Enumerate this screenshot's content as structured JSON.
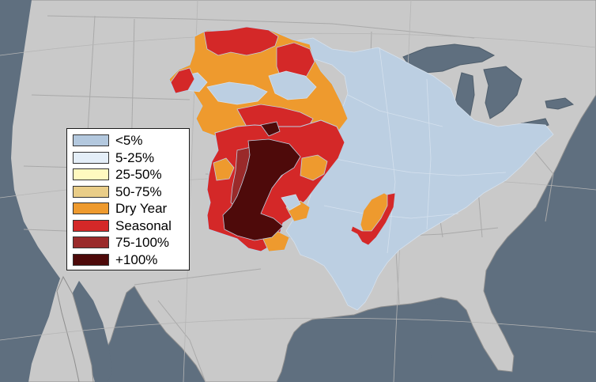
{
  "map": {
    "colors": {
      "ocean": "#5f6f7f",
      "land": "#c9c9c9",
      "border": "#a9a9a9",
      "lake": "#5f6f7f",
      "basin_fill": "#bccfe2",
      "basin_outline": "#d5e1ee"
    },
    "legend": [
      {
        "label": "<5%",
        "color": "#b3c8de"
      },
      {
        "label": "5-25%",
        "color": "#e4eef8"
      },
      {
        "label": "25-50%",
        "color": "#fff9c0"
      },
      {
        "label": "50-75%",
        "color": "#e9cd88"
      },
      {
        "label": "Dry Year",
        "color": "#ee9a2e"
      },
      {
        "label": "Seasonal",
        "color": "#d42828"
      },
      {
        "label": "75-100%",
        "color": "#9a2a2a"
      },
      {
        "label": "+100%",
        "color": "#4e0a0a"
      }
    ]
  }
}
